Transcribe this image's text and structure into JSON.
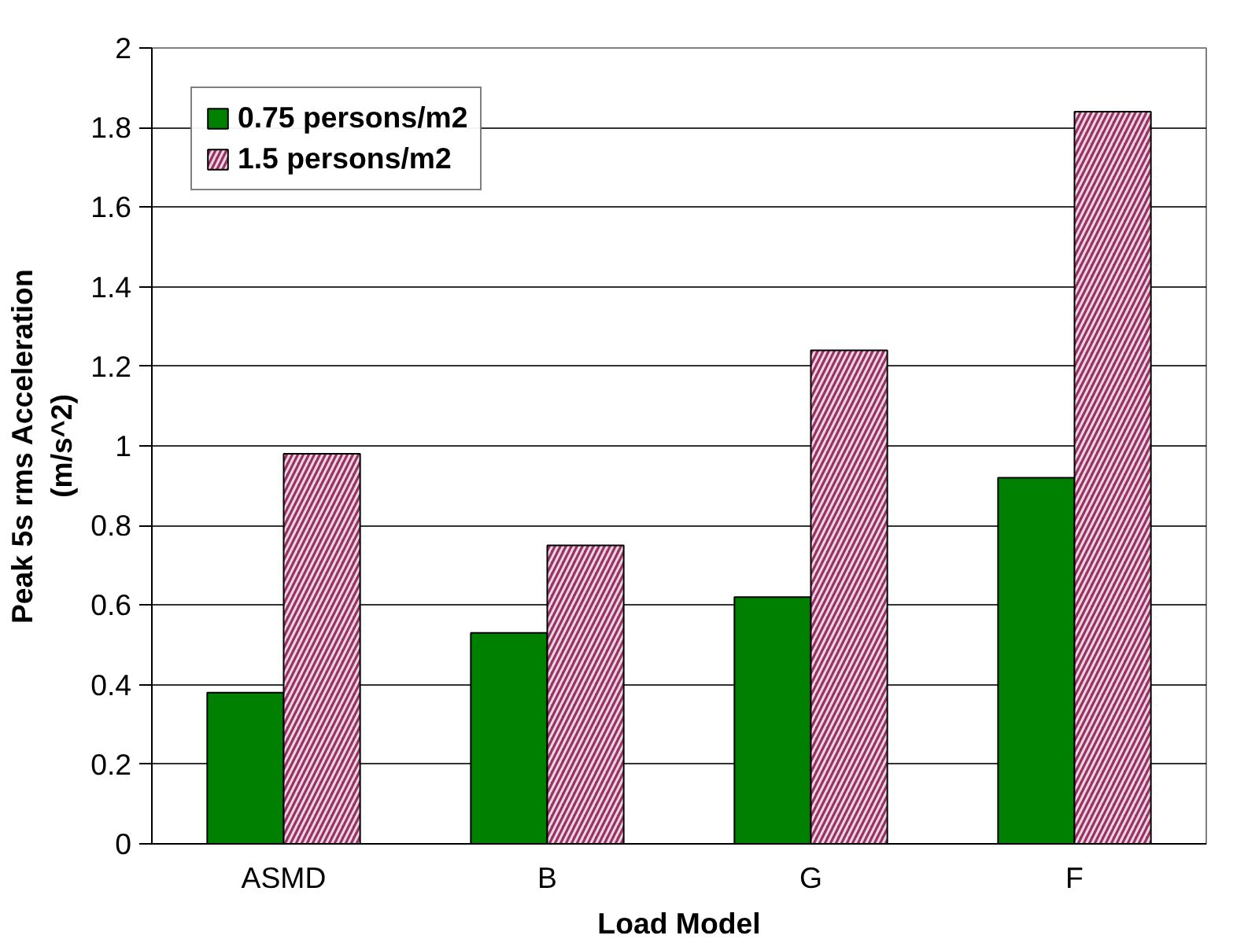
{
  "chart_data": {
    "type": "bar",
    "xlabel": "Load Model",
    "ylabel": "Peak 5s rms Acceleration\n(m/s^2)",
    "categories": [
      "ASMD",
      "B",
      "G",
      "F"
    ],
    "series": [
      {
        "name": "0.75 persons/m2",
        "color": "#008000",
        "values": [
          0.38,
          0.53,
          0.62,
          0.92
        ]
      },
      {
        "name": "1.5 persons/m2",
        "color": "#993366",
        "values": [
          0.98,
          0.75,
          1.24,
          1.84
        ]
      }
    ],
    "ylim": [
      0,
      2
    ],
    "yticks": [
      0,
      0.2,
      0.4,
      0.6,
      0.8,
      1,
      1.2,
      1.4,
      1.6,
      1.8,
      2
    ],
    "grid": "y",
    "legend": "top left"
  }
}
